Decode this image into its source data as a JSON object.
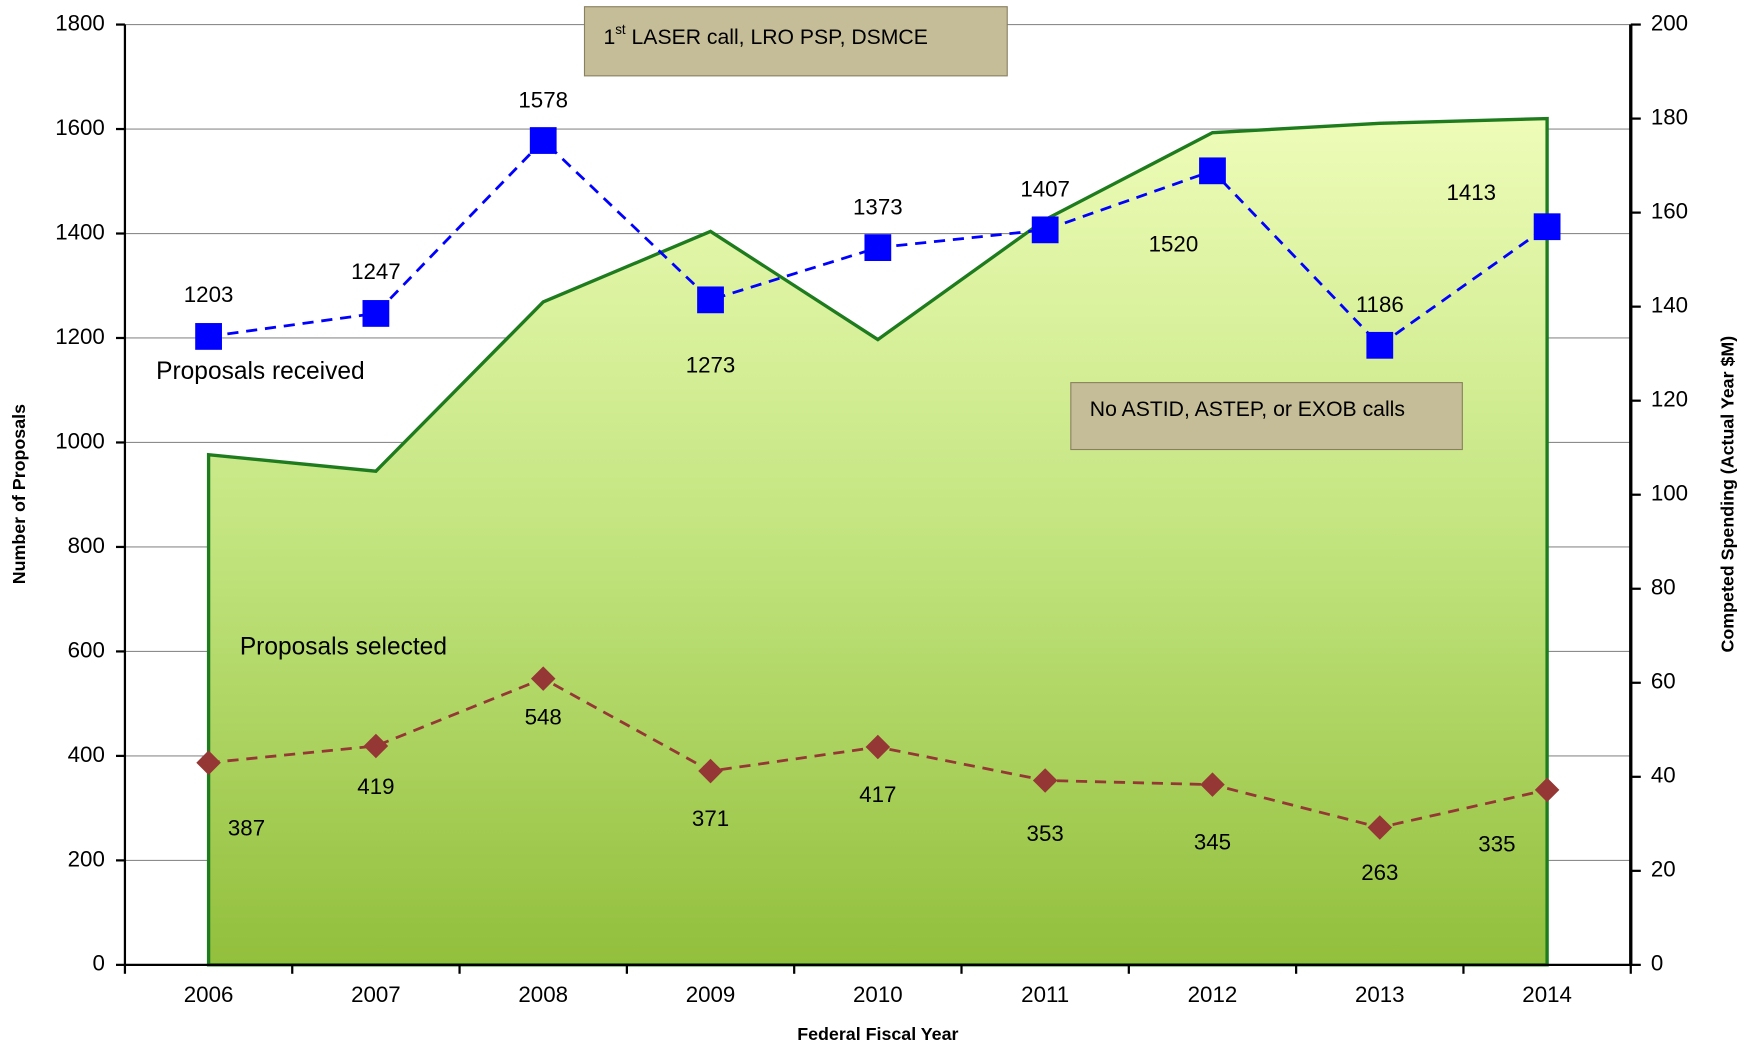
{
  "chart_data": {
    "type": "line",
    "x_label": "Federal Fiscal Year",
    "y_label": "Number of Proposals",
    "y2_label": "Competed Spending (Actual Year $M)",
    "categories": [
      "2006",
      "2007",
      "2008",
      "2009",
      "2010",
      "2011",
      "2012",
      "2013",
      "2014"
    ],
    "ylim": [
      0,
      1800
    ],
    "yticks": [
      0,
      200,
      400,
      600,
      800,
      1000,
      1200,
      1400,
      1600,
      1800
    ],
    "y2lim": [
      0,
      200
    ],
    "y2ticks": [
      0,
      20,
      40,
      60,
      80,
      100,
      120,
      140,
      160,
      180,
      200
    ],
    "grid": true,
    "series": [
      {
        "name": "Proposals received",
        "color": "#0000ff",
        "marker": "square",
        "line_style": "dashed",
        "values": [
          1203,
          1247,
          1578,
          1273,
          1373,
          1407,
          1520,
          1186,
          1413
        ]
      },
      {
        "name": "Proposals selected",
        "color": "#953735",
        "marker": "diamond",
        "line_style": "dashed",
        "values": [
          387,
          419,
          548,
          371,
          417,
          353,
          345,
          263,
          335
        ]
      },
      {
        "type": "area",
        "axis": "y2",
        "color": "#1e7b1e",
        "values": [
          108.5,
          105,
          141,
          156,
          133,
          158.5,
          177,
          179,
          180
        ]
      }
    ],
    "annotations": [
      {
        "text": "1",
        "superscript": "st",
        "text_after": " LASER call, LRO PSP, DSMCE"
      },
      {
        "text": "No ASTID, ASTEP, or EXOB calls"
      }
    ]
  }
}
